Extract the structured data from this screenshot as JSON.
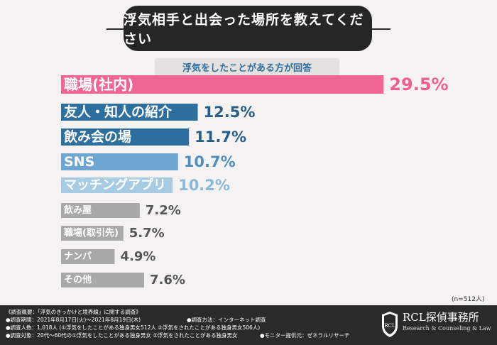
{
  "header": {
    "title": "浮気相手と出会った場所を教えてください"
  },
  "subtitle": "浮気をしたことがある方が回答",
  "chart_data": {
    "type": "bar",
    "orientation": "horizontal",
    "categories": [
      "職場(社内)",
      "友人・知人の紹介",
      "飲み会の場",
      "SNS",
      "マッチングアプリ",
      "飲み屋",
      "職場(取引先)",
      "ナンパ",
      "その他"
    ],
    "value_labels": [
      "29.5%",
      "12.5%",
      "11.7%",
      "10.7%",
      "10.2%",
      "7.2%",
      "5.7%",
      "4.9%",
      "7.6%"
    ],
    "values": [
      29.5,
      12.5,
      11.7,
      10.7,
      10.2,
      7.2,
      5.7,
      4.9,
      7.6
    ],
    "colors": [
      "#f06591",
      "#2d6f9e",
      "#2d6f9e",
      "#6ea6d2",
      "#a8cbe4",
      "#a9a9a9",
      "#a9a9a9",
      "#a9a9a9",
      "#a9a9a9"
    ],
    "label_colors": [
      "#ef5f90",
      "#275e88",
      "#275e88",
      "#4e8fc0",
      "#8ab8da",
      "#555555",
      "#555555",
      "#555555",
      "#555555"
    ],
    "sample_note": "(n=512人)"
  },
  "footer": {
    "lines": [
      "《調査概要：「浮気のきっかけと境界線」に関する調査》",
      "●調査期間：2021年8月17日(火)～2021年8月19日(木)",
      "●調査人数：1,018人 (①浮気をしたことがある独身男女512人 ②浮気をされたことがある独身男女506人)",
      "●調査対象：20代～60代の①浮気をしたことがある独身男女 ②浮気をされたことがある独身男女"
    ],
    "method": "●調査方法：インターネット調査",
    "monitor": "●モニター提供元：ゼネラルリサーチ",
    "logo_title": "RCL探偵事務所",
    "logo_sub": "Research & Counseling & Law",
    "logo_mark": "RCL"
  }
}
